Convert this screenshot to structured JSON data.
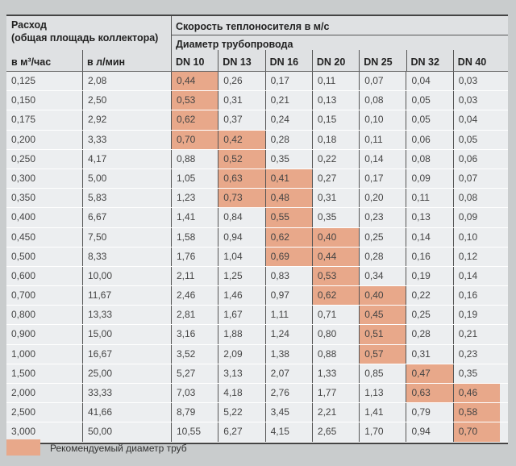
{
  "header": {
    "flow_title": "Расход",
    "flow_subtitle": "(общая площадь коллектора)",
    "speed_title": "Скорость теплоносителя в м/с",
    "diameter_title": "Диаметр трубопровода",
    "col_m3": "в м³/час",
    "col_lmin": "в л/мин",
    "dn": [
      "DN 10",
      "DN 13",
      "DN 16",
      "DN 20",
      "DN 25",
      "DN 32",
      "DN 40"
    ]
  },
  "highlight_color": "#e8a88a",
  "rows": [
    {
      "m3": "0,125",
      "lmin": "2,08",
      "v": [
        "0,44",
        "0,26",
        "0,17",
        "0,11",
        "0,07",
        "0,04",
        "0,03"
      ],
      "hl": [
        0
      ]
    },
    {
      "m3": "0,150",
      "lmin": "2,50",
      "v": [
        "0,53",
        "0,31",
        "0,21",
        "0,13",
        "0,08",
        "0,05",
        "0,03"
      ],
      "hl": [
        0
      ]
    },
    {
      "m3": "0,175",
      "lmin": "2,92",
      "v": [
        "0,62",
        "0,37",
        "0,24",
        "0,15",
        "0,10",
        "0,05",
        "0,04"
      ],
      "hl": [
        0
      ]
    },
    {
      "m3": "0,200",
      "lmin": "3,33",
      "v": [
        "0,70",
        "0,42",
        "0,28",
        "0,18",
        "0,11",
        "0,06",
        "0,05"
      ],
      "hl": [
        0,
        1
      ]
    },
    {
      "m3": "0,250",
      "lmin": "4,17",
      "v": [
        "0,88",
        "0,52",
        "0,35",
        "0,22",
        "0,14",
        "0,08",
        "0,06"
      ],
      "hl": [
        1
      ]
    },
    {
      "m3": "0,300",
      "lmin": "5,00",
      "v": [
        "1,05",
        "0,63",
        "0,41",
        "0,27",
        "0,17",
        "0,09",
        "0,07"
      ],
      "hl": [
        1,
        2
      ]
    },
    {
      "m3": "0,350",
      "lmin": "5,83",
      "v": [
        "1,23",
        "0,73",
        "0,48",
        "0,31",
        "0,20",
        "0,11",
        "0,08"
      ],
      "hl": [
        1,
        2
      ]
    },
    {
      "m3": "0,400",
      "lmin": "6,67",
      "v": [
        "1,41",
        "0,84",
        "0,55",
        "0,35",
        "0,23",
        "0,13",
        "0,09"
      ],
      "hl": [
        2
      ]
    },
    {
      "m3": "0,450",
      "lmin": "7,50",
      "v": [
        "1,58",
        "0,94",
        "0,62",
        "0,40",
        "0,25",
        "0,14",
        "0,10"
      ],
      "hl": [
        2,
        3
      ]
    },
    {
      "m3": "0,500",
      "lmin": "8,33",
      "v": [
        "1,76",
        "1,04",
        "0,69",
        "0,44",
        "0,28",
        "0,16",
        "0,12"
      ],
      "hl": [
        2,
        3
      ]
    },
    {
      "m3": "0,600",
      "lmin": "10,00",
      "v": [
        "2,11",
        "1,25",
        "0,83",
        "0,53",
        "0,34",
        "0,19",
        "0,14"
      ],
      "hl": [
        3
      ]
    },
    {
      "m3": "0,700",
      "lmin": "11,67",
      "v": [
        "2,46",
        "1,46",
        "0,97",
        "0,62",
        "0,40",
        "0,22",
        "0,16"
      ],
      "hl": [
        3,
        4
      ]
    },
    {
      "m3": "0,800",
      "lmin": "13,33",
      "v": [
        "2,81",
        "1,67",
        "1,11",
        "0,71",
        "0,45",
        "0,25",
        "0,19"
      ],
      "hl": [
        4
      ]
    },
    {
      "m3": "0,900",
      "lmin": "15,00",
      "v": [
        "3,16",
        "1,88",
        "1,24",
        "0,80",
        "0,51",
        "0,28",
        "0,21"
      ],
      "hl": [
        4
      ]
    },
    {
      "m3": "1,000",
      "lmin": "16,67",
      "v": [
        "3,52",
        "2,09",
        "1,38",
        "0,88",
        "0,57",
        "0,31",
        "0,23"
      ],
      "hl": [
        4
      ]
    },
    {
      "m3": "1,500",
      "lmin": "25,00",
      "v": [
        "5,27",
        "3,13",
        "2,07",
        "1,33",
        "0,85",
        "0,47",
        "0,35"
      ],
      "hl": [
        5
      ]
    },
    {
      "m3": "2,000",
      "lmin": "33,33",
      "v": [
        "7,03",
        "4,18",
        "2,76",
        "1,77",
        "1,13",
        "0,63",
        "0,46"
      ],
      "hl": [
        5,
        6
      ]
    },
    {
      "m3": "2,500",
      "lmin": "41,66",
      "v": [
        "8,79",
        "5,22",
        "3,45",
        "2,21",
        "1,41",
        "0,79",
        "0,58"
      ],
      "hl": [
        6
      ]
    },
    {
      "m3": "3,000",
      "lmin": "50,00",
      "v": [
        "10,55",
        "6,27",
        "4,15",
        "2,65",
        "1,70",
        "0,94",
        "0,70"
      ],
      "hl": [
        6
      ]
    }
  ],
  "legend": {
    "label": "Рекомендуемый диаметр труб"
  }
}
